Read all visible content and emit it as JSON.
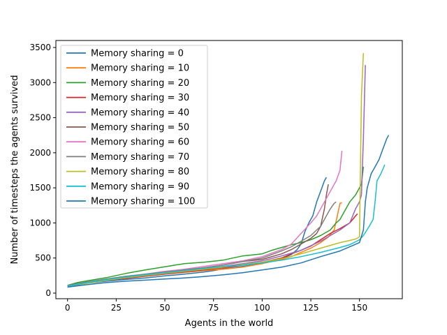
{
  "chart_data": {
    "type": "line",
    "title": "",
    "xlabel": "Agents in the world",
    "ylabel": "Number of timesteps the agents survived",
    "xlim": [
      -6,
      172
    ],
    "ylim": [
      -80,
      3600
    ],
    "xticks": [
      0,
      25,
      50,
      75,
      100,
      125,
      150
    ],
    "yticks": [
      0,
      500,
      1000,
      1500,
      2000,
      2500,
      3000,
      3500
    ],
    "grid": false,
    "legend_position": "top-left",
    "series": [
      {
        "name": "Memory sharing = 0",
        "color": "#1f77b4",
        "points": [
          [
            0,
            90
          ],
          [
            10,
            140
          ],
          [
            20,
            170
          ],
          [
            30,
            195
          ],
          [
            40,
            215
          ],
          [
            50,
            245
          ],
          [
            60,
            270
          ],
          [
            70,
            300
          ],
          [
            75,
            320
          ],
          [
            80,
            345
          ],
          [
            90,
            380
          ],
          [
            100,
            420
          ],
          [
            105,
            460
          ],
          [
            110,
            490
          ],
          [
            115,
            550
          ],
          [
            118,
            620
          ],
          [
            120,
            700
          ],
          [
            122,
            880
          ],
          [
            124,
            1000
          ],
          [
            126,
            1100
          ],
          [
            128,
            1300
          ],
          [
            130,
            1450
          ],
          [
            132,
            1600
          ],
          [
            133,
            1650
          ]
        ]
      },
      {
        "name": "Memory sharing = 10",
        "color": "#ff7f0e",
        "points": [
          [
            0,
            110
          ],
          [
            10,
            140
          ],
          [
            20,
            180
          ],
          [
            30,
            210
          ],
          [
            40,
            240
          ],
          [
            50,
            270
          ],
          [
            60,
            295
          ],
          [
            70,
            320
          ],
          [
            80,
            340
          ],
          [
            90,
            370
          ],
          [
            100,
            420
          ],
          [
            110,
            480
          ],
          [
            115,
            520
          ],
          [
            120,
            580
          ],
          [
            125,
            640
          ],
          [
            130,
            720
          ],
          [
            134,
            800
          ],
          [
            137,
            900
          ],
          [
            139,
            1150
          ],
          [
            140,
            1280
          ],
          [
            141,
            1290
          ]
        ]
      },
      {
        "name": "Memory sharing = 20",
        "color": "#2ca02c",
        "points": [
          [
            0,
            110
          ],
          [
            5,
            150
          ],
          [
            10,
            175
          ],
          [
            20,
            220
          ],
          [
            30,
            280
          ],
          [
            40,
            330
          ],
          [
            50,
            375
          ],
          [
            60,
            420
          ],
          [
            70,
            440
          ],
          [
            80,
            470
          ],
          [
            90,
            530
          ],
          [
            100,
            560
          ],
          [
            105,
            610
          ],
          [
            110,
            650
          ],
          [
            115,
            690
          ],
          [
            120,
            720
          ],
          [
            125,
            760
          ],
          [
            130,
            820
          ],
          [
            135,
            900
          ],
          [
            138,
            1000
          ],
          [
            140,
            1050
          ],
          [
            143,
            1200
          ],
          [
            145,
            1300
          ],
          [
            148,
            1400
          ],
          [
            150,
            1500
          ],
          [
            151,
            1550
          ],
          [
            152,
            1800
          ]
        ]
      },
      {
        "name": "Memory sharing = 30",
        "color": "#d62728",
        "points": [
          [
            0,
            100
          ],
          [
            10,
            140
          ],
          [
            20,
            180
          ],
          [
            30,
            210
          ],
          [
            40,
            240
          ],
          [
            50,
            270
          ],
          [
            60,
            300
          ],
          [
            70,
            330
          ],
          [
            80,
            360
          ],
          [
            90,
            400
          ],
          [
            100,
            440
          ],
          [
            110,
            500
          ],
          [
            115,
            560
          ],
          [
            120,
            610
          ],
          [
            125,
            670
          ],
          [
            130,
            760
          ],
          [
            135,
            850
          ],
          [
            140,
            920
          ],
          [
            145,
            1000
          ],
          [
            148,
            1100
          ],
          [
            149,
            1130
          ]
        ]
      },
      {
        "name": "Memory sharing = 40",
        "color": "#9467bd",
        "points": [
          [
            0,
            100
          ],
          [
            10,
            140
          ],
          [
            20,
            180
          ],
          [
            30,
            220
          ],
          [
            40,
            250
          ],
          [
            50,
            280
          ],
          [
            60,
            310
          ],
          [
            70,
            340
          ],
          [
            80,
            380
          ],
          [
            90,
            420
          ],
          [
            100,
            460
          ],
          [
            110,
            530
          ],
          [
            120,
            610
          ],
          [
            130,
            740
          ],
          [
            135,
            820
          ],
          [
            140,
            900
          ],
          [
            145,
            1000
          ],
          [
            148,
            1200
          ],
          [
            150,
            1300
          ],
          [
            151,
            1400
          ],
          [
            152,
            2200
          ],
          [
            153,
            3250
          ]
        ]
      },
      {
        "name": "Memory sharing = 50",
        "color": "#8c564b",
        "points": [
          [
            0,
            100
          ],
          [
            10,
            150
          ],
          [
            20,
            190
          ],
          [
            30,
            230
          ],
          [
            40,
            260
          ],
          [
            50,
            300
          ],
          [
            60,
            330
          ],
          [
            70,
            360
          ],
          [
            80,
            400
          ],
          [
            90,
            450
          ],
          [
            100,
            480
          ],
          [
            110,
            560
          ],
          [
            115,
            620
          ],
          [
            120,
            700
          ],
          [
            125,
            780
          ],
          [
            128,
            850
          ],
          [
            130,
            950
          ],
          [
            132,
            1200
          ],
          [
            133,
            1400
          ],
          [
            134,
            1550
          ]
        ]
      },
      {
        "name": "Memory sharing = 60",
        "color": "#e377c2",
        "points": [
          [
            0,
            100
          ],
          [
            10,
            140
          ],
          [
            20,
            190
          ],
          [
            30,
            230
          ],
          [
            40,
            270
          ],
          [
            50,
            310
          ],
          [
            60,
            340
          ],
          [
            70,
            380
          ],
          [
            80,
            420
          ],
          [
            90,
            460
          ],
          [
            100,
            520
          ],
          [
            110,
            620
          ],
          [
            115,
            700
          ],
          [
            120,
            850
          ],
          [
            125,
            1000
          ],
          [
            128,
            1100
          ],
          [
            130,
            1200
          ],
          [
            132,
            1300
          ],
          [
            135,
            1450
          ],
          [
            138,
            1600
          ],
          [
            140,
            1750
          ],
          [
            141,
            2030
          ]
        ]
      },
      {
        "name": "Memory sharing = 70",
        "color": "#7f7f7f",
        "points": [
          [
            0,
            110
          ],
          [
            10,
            160
          ],
          [
            20,
            200
          ],
          [
            30,
            240
          ],
          [
            40,
            270
          ],
          [
            50,
            300
          ],
          [
            60,
            330
          ],
          [
            70,
            360
          ],
          [
            80,
            400
          ],
          [
            90,
            450
          ],
          [
            100,
            500
          ],
          [
            110,
            600
          ],
          [
            115,
            660
          ],
          [
            120,
            740
          ],
          [
            125,
            820
          ],
          [
            128,
            900
          ],
          [
            130,
            950
          ],
          [
            132,
            1050
          ],
          [
            134,
            1150
          ],
          [
            135,
            1200
          ],
          [
            137,
            1280
          ],
          [
            138,
            1300
          ]
        ]
      },
      {
        "name": "Memory sharing = 80",
        "color": "#bcbd22",
        "points": [
          [
            0,
            100
          ],
          [
            10,
            140
          ],
          [
            20,
            180
          ],
          [
            30,
            220
          ],
          [
            40,
            250
          ],
          [
            50,
            280
          ],
          [
            60,
            310
          ],
          [
            70,
            340
          ],
          [
            80,
            370
          ],
          [
            90,
            410
          ],
          [
            100,
            440
          ],
          [
            110,
            490
          ],
          [
            120,
            560
          ],
          [
            130,
            640
          ],
          [
            140,
            720
          ],
          [
            145,
            750
          ],
          [
            148,
            770
          ],
          [
            150,
            800
          ],
          [
            151,
            2800
          ],
          [
            152,
            3420
          ]
        ]
      },
      {
        "name": "Memory sharing = 90",
        "color": "#17becf",
        "points": [
          [
            0,
            100
          ],
          [
            10,
            150
          ],
          [
            20,
            190
          ],
          [
            30,
            230
          ],
          [
            40,
            260
          ],
          [
            50,
            290
          ],
          [
            60,
            320
          ],
          [
            70,
            350
          ],
          [
            80,
            380
          ],
          [
            90,
            400
          ],
          [
            100,
            430
          ],
          [
            110,
            470
          ],
          [
            120,
            520
          ],
          [
            130,
            580
          ],
          [
            140,
            650
          ],
          [
            145,
            690
          ],
          [
            150,
            760
          ],
          [
            152,
            820
          ],
          [
            155,
            950
          ],
          [
            157,
            1050
          ],
          [
            158,
            1300
          ],
          [
            159,
            1600
          ],
          [
            161,
            1700
          ],
          [
            163,
            1830
          ]
        ]
      },
      {
        "name": "Memory sharing = 100",
        "color": "#1f77b4",
        "points": [
          [
            0,
            85
          ],
          [
            10,
            120
          ],
          [
            20,
            150
          ],
          [
            30,
            170
          ],
          [
            40,
            185
          ],
          [
            50,
            200
          ],
          [
            60,
            215
          ],
          [
            70,
            235
          ],
          [
            80,
            260
          ],
          [
            90,
            290
          ],
          [
            100,
            330
          ],
          [
            110,
            370
          ],
          [
            120,
            430
          ],
          [
            130,
            520
          ],
          [
            140,
            600
          ],
          [
            150,
            720
          ],
          [
            152,
            900
          ],
          [
            153,
            1300
          ],
          [
            154,
            1500
          ],
          [
            156,
            1700
          ],
          [
            158,
            1800
          ],
          [
            160,
            1900
          ],
          [
            162,
            2050
          ],
          [
            164,
            2200
          ],
          [
            165,
            2250
          ]
        ]
      }
    ]
  }
}
